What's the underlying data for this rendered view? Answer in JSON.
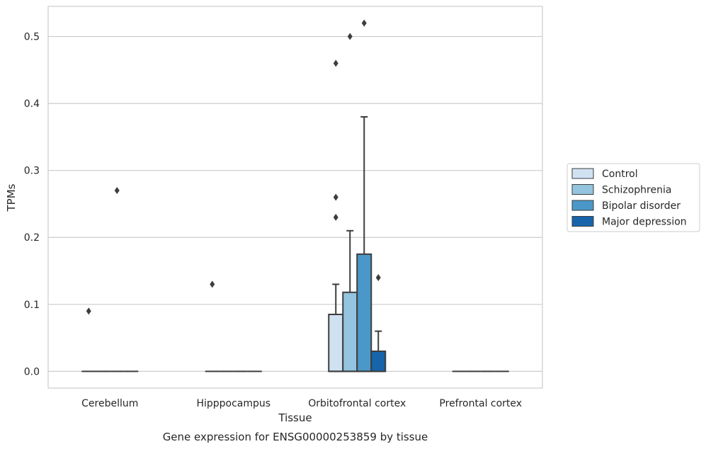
{
  "chart_data": {
    "type": "box",
    "title": "",
    "caption": "Gene expression for ENSG00000253859 by tissue",
    "xlabel": "Tissue",
    "ylabel": "TPMs",
    "ylim": [
      -0.025,
      0.545
    ],
    "yticks": [
      0.0,
      0.1,
      0.2,
      0.3,
      0.4,
      0.5
    ],
    "ytick_labels": [
      "0.0",
      "0.1",
      "0.2",
      "0.3",
      "0.4",
      "0.5"
    ],
    "grid": true,
    "legend_position": "right",
    "categories": [
      "Cerebellum",
      "Hipppocampus",
      "Orbitofrontal cortex",
      "Prefrontal cortex"
    ],
    "series": [
      {
        "name": "Control",
        "color": "#d0e1f2",
        "boxes": [
          {
            "q1": 0,
            "median": 0,
            "q3": 0,
            "whisker_low": 0,
            "whisker_high": 0,
            "outliers": [
              0.09
            ]
          },
          {
            "q1": 0,
            "median": 0,
            "q3": 0,
            "whisker_low": 0,
            "whisker_high": 0,
            "outliers": [
              0.13
            ]
          },
          {
            "q1": 0,
            "median": 0,
            "q3": 0.085,
            "whisker_low": 0,
            "whisker_high": 0.13,
            "outliers": [
              0.23,
              0.26,
              0.46
            ]
          },
          {
            "q1": 0,
            "median": 0,
            "q3": 0,
            "whisker_low": 0,
            "whisker_high": 0,
            "outliers": []
          }
        ]
      },
      {
        "name": "Schizophrenia",
        "color": "#94c4df",
        "boxes": [
          {
            "q1": 0,
            "median": 0,
            "q3": 0,
            "whisker_low": 0,
            "whisker_high": 0,
            "outliers": []
          },
          {
            "q1": 0,
            "median": 0,
            "q3": 0,
            "whisker_low": 0,
            "whisker_high": 0,
            "outliers": []
          },
          {
            "q1": 0,
            "median": 0,
            "q3": 0.118,
            "whisker_low": 0,
            "whisker_high": 0.21,
            "outliers": [
              0.5
            ]
          },
          {
            "q1": 0,
            "median": 0,
            "q3": 0,
            "whisker_low": 0,
            "whisker_high": 0,
            "outliers": []
          }
        ]
      },
      {
        "name": "Bipolar disorder",
        "color": "#4a98c9",
        "boxes": [
          {
            "q1": 0,
            "median": 0,
            "q3": 0,
            "whisker_low": 0,
            "whisker_high": 0,
            "outliers": [
              0.27
            ]
          },
          {
            "q1": 0,
            "median": 0,
            "q3": 0,
            "whisker_low": 0,
            "whisker_high": 0,
            "outliers": []
          },
          {
            "q1": 0,
            "median": 0,
            "q3": 0.175,
            "whisker_low": 0,
            "whisker_high": 0.38,
            "outliers": [
              0.52
            ]
          },
          {
            "q1": 0,
            "median": 0,
            "q3": 0,
            "whisker_low": 0,
            "whisker_high": 0,
            "outliers": []
          }
        ]
      },
      {
        "name": "Major depression",
        "color": "#1764ab",
        "boxes": [
          {
            "q1": 0,
            "median": 0,
            "q3": 0,
            "whisker_low": 0,
            "whisker_high": 0,
            "outliers": []
          },
          {
            "q1": 0,
            "median": 0,
            "q3": 0,
            "whisker_low": 0,
            "whisker_high": 0,
            "outliers": []
          },
          {
            "q1": 0,
            "median": 0,
            "q3": 0.03,
            "whisker_low": 0,
            "whisker_high": 0.06,
            "outliers": [
              0.14
            ]
          },
          {
            "q1": 0,
            "median": 0,
            "q3": 0,
            "whisker_low": 0,
            "whisker_high": 0,
            "outliers": []
          }
        ]
      }
    ]
  }
}
